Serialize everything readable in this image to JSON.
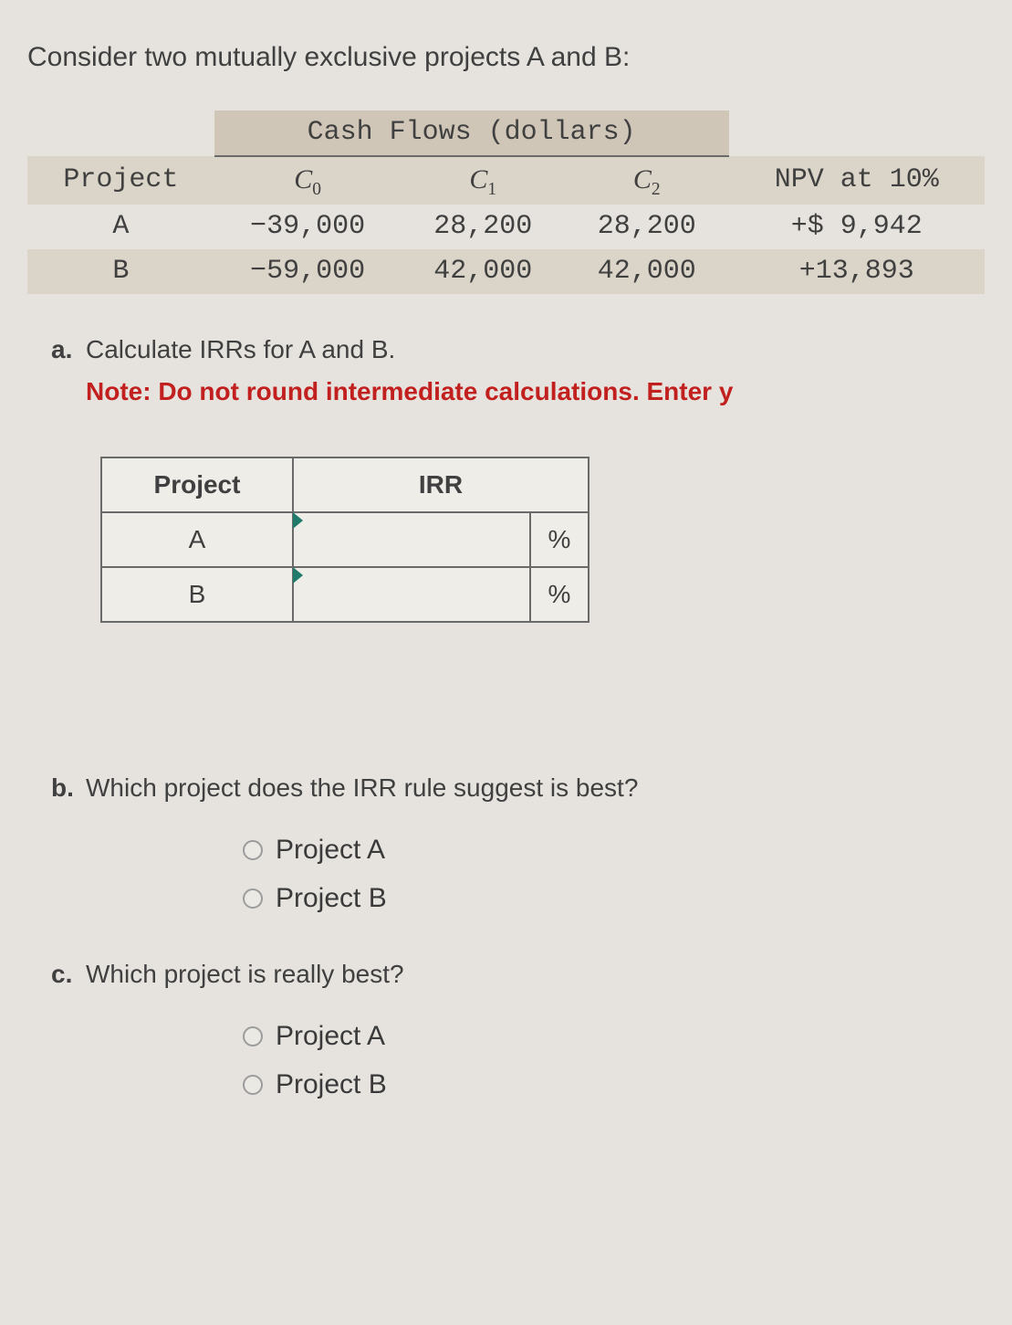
{
  "intro": "Consider two mutually exclusive projects A and B:",
  "cashflow_table": {
    "header_span": "Cash Flows (dollars)",
    "columns": {
      "project": "Project",
      "c0": "C",
      "c0_sub": "0",
      "c1": "C",
      "c1_sub": "1",
      "c2": "C",
      "c2_sub": "2",
      "npv": "NPV at 10%"
    },
    "rows": [
      {
        "project": "A",
        "c0": "−39,000",
        "c1": "28,200",
        "c2": "28,200",
        "npv": "+$ 9,942"
      },
      {
        "project": "B",
        "c0": "−59,000",
        "c1": "42,000",
        "c2": "42,000",
        "npv": "+13,893"
      }
    ]
  },
  "question_a": {
    "letter": "a.",
    "text": "Calculate IRRs for A and B.",
    "note": "Note: Do not round intermediate calculations. Enter y"
  },
  "irr_table": {
    "col_project": "Project",
    "col_irr": "IRR",
    "rows": [
      {
        "label": "A",
        "unit": "%"
      },
      {
        "label": "B",
        "unit": "%"
      }
    ]
  },
  "question_b": {
    "letter": "b.",
    "text": "Which project does the IRR rule suggest is best?",
    "options": [
      "Project A",
      "Project B"
    ]
  },
  "question_c": {
    "letter": "c.",
    "text": "Which project is really best?",
    "options": [
      "Project A",
      "Project B"
    ]
  },
  "colors": {
    "background": "#e6e3de",
    "text": "#404040",
    "note_red": "#c21f1f",
    "shade1": "#cfc6b7",
    "shade2": "#dbd4c8",
    "border": "#6a6a6a",
    "caret": "#1f7a6b"
  }
}
